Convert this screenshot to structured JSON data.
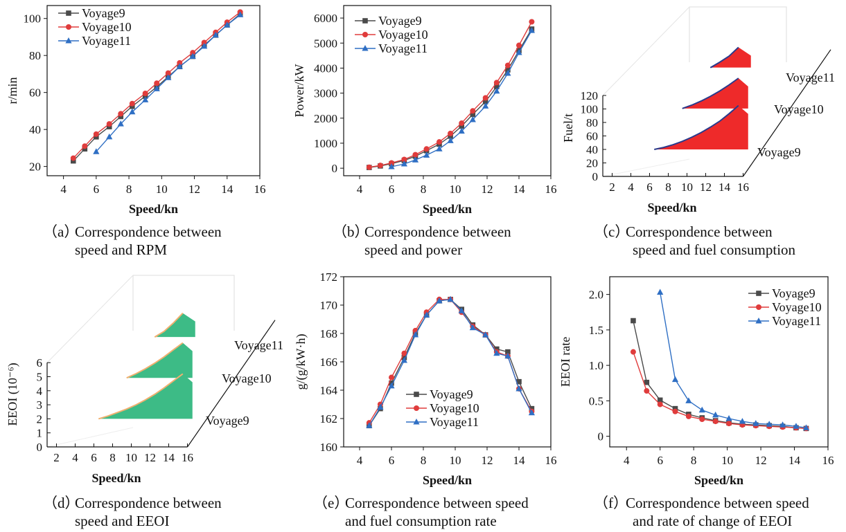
{
  "captions": {
    "a": {
      "label": "（a）",
      "line1": "Correspondence between",
      "line2": "speed and RPM"
    },
    "b": {
      "label": "（b）",
      "line1": "Correspondence between",
      "line2": "speed and power"
    },
    "c": {
      "label": "（c）",
      "line1": "Correspondence between",
      "line2": "speed and fuel consumption"
    },
    "d": {
      "label": "（d）",
      "line1": "Correspondence between",
      "line2": "speed and EEOI"
    },
    "e": {
      "label": "（e）",
      "line1": "Correspondence between speed",
      "line2": "and fuel consumption rate"
    },
    "f": {
      "label": "（f）",
      "line1": "Correspondence between speed",
      "line2": "and rate of change of EEOI"
    }
  },
  "colors": {
    "Voyage9": "#4a4a4a",
    "Voyage10": "#e03c3c",
    "Voyage11": "#2f6fc4",
    "fuel_fill": "#ee2a2a",
    "eeoi_fill": "#3dbb86",
    "fuel_edge": "#2a3a8c",
    "eeoi_edge": "#f0b070"
  },
  "chart_data": [
    {
      "id": "a",
      "type": "line",
      "xlabel": "Speed/kn",
      "ylabel": "r/min",
      "xlim": [
        3,
        16
      ],
      "ylim": [
        15,
        107
      ],
      "xticks": [
        4,
        6,
        8,
        10,
        12,
        14,
        16
      ],
      "yticks": [
        20,
        40,
        60,
        80,
        100
      ],
      "legend": "top-left",
      "series": [
        {
          "name": "Voyage9",
          "marker": "square",
          "x": [
            4.6,
            5.3,
            6.0,
            6.8,
            7.5,
            8.2,
            9.0,
            9.7,
            10.4,
            11.1,
            11.9,
            12.6,
            13.3,
            14.0,
            14.8
          ],
          "y": [
            23,
            29.5,
            36,
            41.5,
            47,
            52.5,
            58,
            63,
            68.5,
            74,
            79.5,
            85.5,
            91,
            96.5,
            102.5
          ]
        },
        {
          "name": "Voyage10",
          "marker": "circle",
          "x": [
            4.6,
            5.3,
            6.0,
            6.8,
            7.5,
            8.2,
            9.0,
            9.7,
            10.4,
            11.1,
            11.9,
            12.6,
            13.3,
            14.0,
            14.8
          ],
          "y": [
            24.5,
            31,
            37.5,
            43,
            48.5,
            54,
            59.5,
            65,
            70.5,
            76,
            81.5,
            87,
            92.5,
            98,
            103.5
          ]
        },
        {
          "name": "Voyage11",
          "marker": "triangle",
          "x": [
            6.0,
            6.8,
            7.5,
            8.2,
            9.0,
            9.7,
            10.4,
            11.1,
            11.9,
            12.6,
            13.3,
            14.0,
            14.8
          ],
          "y": [
            28,
            36,
            43,
            49.5,
            56,
            62,
            68,
            74,
            79.5,
            85,
            91,
            96.5,
            102
          ]
        }
      ]
    },
    {
      "id": "b",
      "type": "line",
      "xlabel": "Speed/kn",
      "ylabel": "Power/kW",
      "xlim": [
        3,
        16
      ],
      "ylim": [
        -300,
        6500
      ],
      "xticks": [
        4,
        6,
        8,
        10,
        12,
        14,
        16
      ],
      "yticks": [
        0,
        1000,
        2000,
        3000,
        4000,
        5000,
        6000
      ],
      "legend": "top-left",
      "series": [
        {
          "name": "Voyage9",
          "marker": "square",
          "x": [
            4.6,
            5.3,
            6.0,
            6.8,
            7.5,
            8.2,
            9.0,
            9.7,
            10.4,
            11.1,
            11.9,
            12.6,
            13.3,
            14.0,
            14.8
          ],
          "y": [
            30,
            90,
            180,
            310,
            480,
            700,
            960,
            1280,
            1680,
            2150,
            2660,
            3260,
            3930,
            4700,
            5560
          ]
        },
        {
          "name": "Voyage10",
          "marker": "circle",
          "x": [
            4.6,
            5.3,
            6.0,
            6.8,
            7.5,
            8.2,
            9.0,
            9.7,
            10.4,
            11.1,
            11.9,
            12.6,
            13.3,
            14.0,
            14.8
          ],
          "y": [
            40,
            110,
            210,
            350,
            540,
            770,
            1050,
            1390,
            1800,
            2290,
            2810,
            3420,
            4110,
            4910,
            5850
          ]
        },
        {
          "name": "Voyage11",
          "marker": "triangle",
          "x": [
            6.0,
            6.8,
            7.5,
            8.2,
            9.0,
            9.7,
            10.4,
            11.1,
            11.9,
            12.6,
            13.3,
            14.0,
            14.8
          ],
          "y": [
            60,
            170,
            330,
            520,
            770,
            1100,
            1480,
            1940,
            2480,
            3080,
            3790,
            4620,
            5500
          ]
        }
      ]
    },
    {
      "id": "c",
      "type": "area",
      "xlabel": "Speed/kn",
      "ylabel": "Fuel/t",
      "xlim": [
        1,
        16
      ],
      "ylim": [
        0,
        120
      ],
      "xticks": [
        2,
        4,
        6,
        8,
        10,
        12,
        14,
        16
      ],
      "yticks": [
        0,
        20,
        40,
        60,
        80,
        100,
        120
      ],
      "series": [
        {
          "name": "Voyage9",
          "x": [
            6.5,
            7.5,
            8.5,
            9.5,
            10.5,
            11.5,
            12.5,
            13.5,
            14.5,
            15.5
          ],
          "y": [
            0,
            3,
            7,
            12,
            18,
            25,
            33,
            42,
            53,
            65
          ]
        },
        {
          "name": "Voyage10",
          "x": [
            9.5,
            10.5,
            11.5,
            12.5,
            13.5,
            14.5,
            15.5
          ],
          "y": [
            0,
            5,
            11,
            18,
            26,
            35,
            45
          ]
        },
        {
          "name": "Voyage11",
          "x": [
            12.5,
            13.5,
            14.5,
            15.5
          ],
          "y": [
            0,
            8,
            17,
            30
          ]
        }
      ]
    },
    {
      "id": "d",
      "type": "area",
      "xlabel": "Speed/kn",
      "ylabel": "EEOI (10⁻⁶)",
      "xlim": [
        1,
        16
      ],
      "ylim": [
        0,
        6
      ],
      "xticks": [
        2,
        4,
        6,
        8,
        10,
        12,
        14,
        16
      ],
      "yticks": [
        0,
        1,
        2,
        3,
        4,
        5,
        6
      ],
      "series": [
        {
          "name": "Voyage9",
          "x": [
            6.5,
            7.5,
            8.5,
            9.5,
            10.5,
            11.5,
            12.5,
            13.5,
            14.5,
            15.5
          ],
          "y": [
            0,
            0.2,
            0.45,
            0.7,
            1.0,
            1.35,
            1.75,
            2.2,
            2.7,
            3.2
          ]
        },
        {
          "name": "Voyage10",
          "x": [
            9.5,
            10.5,
            11.5,
            12.5,
            13.5,
            14.5,
            15.5
          ],
          "y": [
            0,
            0.3,
            0.65,
            1.05,
            1.5,
            2.0,
            2.5
          ]
        },
        {
          "name": "Voyage11",
          "x": [
            12.5,
            13.5,
            14.5,
            15.5
          ],
          "y": [
            0,
            0.4,
            1.0,
            1.7
          ]
        }
      ]
    },
    {
      "id": "e",
      "type": "line",
      "xlabel": "Speed/kn",
      "ylabel": "g/(g/kW·h)",
      "xlim": [
        3,
        16
      ],
      "ylim": [
        160,
        172
      ],
      "xticks": [
        4,
        6,
        8,
        10,
        12,
        14,
        16
      ],
      "yticks": [
        160,
        162,
        164,
        166,
        168,
        170,
        172
      ],
      "legend": "bottom-center",
      "series": [
        {
          "name": "Voyage9",
          "marker": "square",
          "x": [
            4.6,
            5.3,
            6.0,
            6.8,
            7.5,
            8.2,
            9.0,
            9.7,
            10.4,
            11.1,
            11.9,
            12.6,
            13.3,
            14.0,
            14.8
          ],
          "y": [
            161.5,
            162.7,
            164.5,
            166.3,
            168.0,
            169.3,
            170.3,
            170.4,
            169.7,
            168.6,
            167.9,
            166.9,
            166.7,
            164.6,
            162.7
          ]
        },
        {
          "name": "Voyage10",
          "marker": "circle",
          "x": [
            4.6,
            5.3,
            6.0,
            6.8,
            7.5,
            8.2,
            9.0,
            9.7,
            10.4,
            11.1,
            11.9,
            12.6,
            13.3,
            14.0,
            14.8
          ],
          "y": [
            161.7,
            163.0,
            164.9,
            166.6,
            168.2,
            169.5,
            170.4,
            170.4,
            169.5,
            168.5,
            167.9,
            166.7,
            166.4,
            164.1,
            162.5
          ]
        },
        {
          "name": "Voyage11",
          "marker": "triangle",
          "x": [
            4.6,
            5.3,
            6.0,
            6.8,
            7.5,
            8.2,
            9.0,
            9.7,
            10.4,
            11.1,
            11.9,
            12.6,
            13.3,
            14.0,
            14.8
          ],
          "y": [
            161.5,
            162.8,
            164.3,
            166.1,
            167.9,
            169.3,
            170.3,
            170.4,
            169.6,
            168.4,
            167.9,
            166.6,
            166.4,
            164.1,
            162.4
          ]
        }
      ]
    },
    {
      "id": "f",
      "type": "line",
      "xlabel": "Speed/kn",
      "ylabel": "EEOI rate",
      "xlim": [
        3,
        16
      ],
      "ylim": [
        -0.15,
        2.25
      ],
      "xticks": [
        4,
        6,
        8,
        10,
        12,
        14,
        16
      ],
      "yticks": [
        0,
        0.5,
        1.0,
        1.5,
        2.0
      ],
      "ytick_labels": [
        "0",
        "0.5",
        "1.0",
        "1.5",
        "2.0"
      ],
      "legend": "top-right",
      "series": [
        {
          "name": "Voyage9",
          "marker": "square",
          "x": [
            4.4,
            5.2,
            6.0,
            6.9,
            7.7,
            8.5,
            9.3,
            10.1,
            10.9,
            11.7,
            12.5,
            13.3,
            14.1,
            14.7
          ],
          "y": [
            1.63,
            0.76,
            0.51,
            0.39,
            0.31,
            0.26,
            0.22,
            0.19,
            0.17,
            0.16,
            0.15,
            0.14,
            0.12,
            0.11
          ]
        },
        {
          "name": "Voyage10",
          "marker": "circle",
          "x": [
            4.4,
            5.2,
            6.0,
            6.9,
            7.7,
            8.5,
            9.3,
            10.1,
            10.9,
            11.7,
            12.5,
            13.3,
            14.1,
            14.7
          ],
          "y": [
            1.19,
            0.64,
            0.45,
            0.35,
            0.28,
            0.24,
            0.21,
            0.18,
            0.16,
            0.15,
            0.14,
            0.13,
            0.12,
            0.11
          ]
        },
        {
          "name": "Voyage11",
          "marker": "triangle",
          "x": [
            6.0,
            6.9,
            7.7,
            8.5,
            9.3,
            10.1,
            10.9,
            11.7,
            12.5,
            13.3,
            14.1,
            14.7
          ],
          "y": [
            2.03,
            0.8,
            0.5,
            0.37,
            0.3,
            0.25,
            0.21,
            0.18,
            0.17,
            0.16,
            0.14,
            0.12
          ]
        }
      ]
    }
  ]
}
